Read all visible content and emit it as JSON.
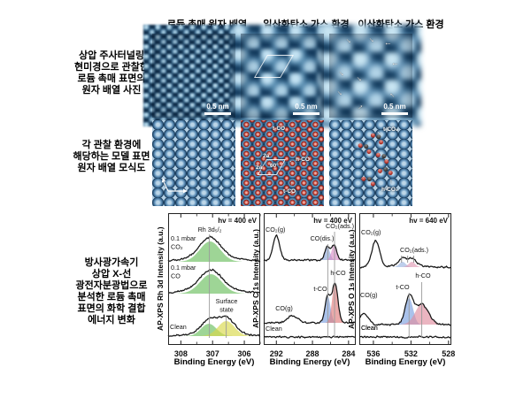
{
  "figure": {
    "headers": {
      "col1": "로듐 촉매 원자 배열",
      "col2": "일산화탄소 가스 환경",
      "col3": "이산화탄소 가스 환경"
    },
    "row_labels": {
      "row1": [
        "상압 주사터널링",
        "현미경으로 관찰한",
        "로듐 촉매 표면의",
        "원자 배열 사진"
      ],
      "row2": [
        "각 관찰 환경에",
        "해당하는 모델 표면",
        "원자 배열 모식도"
      ],
      "row3": [
        "방사광가속기",
        "상압 X-선",
        "광전자분광법으로",
        "분석한 로듐 촉매",
        "표면의 화학 결합",
        "에너지 변화"
      ]
    },
    "scale_bar": "0.5 nm",
    "model_labels": {
      "t_co_top": "t-CO",
      "h_co": "h-CO",
      "two_a_1": "2a",
      "two_a_2": "2a",
      "angle": "60°",
      "t_co_bottom": "t-CO",
      "t_co2": "t-CO₂",
      "h_co2": "h-CO₂"
    }
  },
  "chart_data": [
    {
      "type": "line",
      "title": "hv = 400 eV",
      "ylabel": "AP-XPS Rh 3d Intensity (a.u.)",
      "xlabel": "Binding Energy (eV)",
      "x_range": [
        308.4,
        305.5
      ],
      "x_ticks": [
        308,
        307,
        306
      ],
      "x_minor_ticks": [
        307.5,
        306.5,
        305.5
      ],
      "guide_lines": [
        {
          "x": 307.1,
          "y1": 24,
          "y2": 141
        },
        {
          "x": 306.57,
          "y1": 115,
          "y2": 141
        }
      ],
      "curves": [
        {
          "name": "0.1 mbar CO2",
          "label_lines": [
            "0.1 mbar",
            "CO₂"
          ],
          "label_x": 3,
          "label_y": 31,
          "baseline": 55,
          "peaks": [
            {
              "c": 307.08,
              "w": 0.32,
              "h": 23,
              "fill": "#6abf5e"
            },
            {
              "c": 307.0,
              "w": 0.85,
              "h": 5,
              "fill": null
            }
          ]
        },
        {
          "name": "0.1 mbar CO",
          "label_lines": [
            "0.1 mbar",
            "CO"
          ],
          "label_x": 3,
          "label_y": 64,
          "baseline": 91,
          "peaks": [
            {
              "c": 307.05,
              "w": 0.34,
              "h": 22,
              "fill": "#6abf5e"
            },
            {
              "c": 307.0,
              "w": 0.85,
              "h": 5,
              "fill": null
            }
          ]
        },
        {
          "name": "Clean",
          "label_lines": [
            "Clean"
          ],
          "label_x": 2,
          "label_y": 131,
          "baseline": 139,
          "peaks": [
            {
              "c": 307.12,
              "w": 0.24,
              "h": 14,
              "fill": "#6abf5e"
            },
            {
              "c": 306.57,
              "w": 0.26,
              "h": 17,
              "fill": "#d8d84a"
            },
            {
              "c": 306.85,
              "w": 0.7,
              "h": 4,
              "fill": null
            }
          ]
        }
      ],
      "annotations": [
        {
          "lines": [
            "Rh 3d₅/₂"
          ],
          "x": 47,
          "y": 21,
          "anchor": "middle"
        },
        {
          "lines": [
            "Surface",
            "state"
          ],
          "x": 66,
          "y": 102,
          "anchor": "middle"
        }
      ]
    },
    {
      "type": "line",
      "title": "hv = 400 eV",
      "ylabel": "AP-XPS C 1s Intensity (a.u.)",
      "xlabel": "Binding Energy (eV)",
      "x_range": [
        293.4,
        283.2
      ],
      "x_ticks": [
        292,
        288,
        284
      ],
      "x_minor_ticks": [
        290,
        286
      ],
      "guide_lines": [
        {
          "x": 286.3,
          "y1": 35,
          "y2": 141
        },
        {
          "x": 285.55,
          "y1": 21,
          "y2": 141
        }
      ],
      "curves": [
        {
          "name": "0.1 mbar CO2",
          "label_lines": [],
          "label_x": 0,
          "label_y": 0,
          "baseline": 53,
          "peaks": [
            {
              "c": 292.0,
              "w": 0.35,
              "h": 28,
              "fill": null
            },
            {
              "c": 286.35,
              "w": 0.28,
              "h": 15,
              "fill": "#8ea8d8"
            },
            {
              "c": 285.6,
              "w": 0.28,
              "h": 17,
              "fill": "#d88ec8"
            }
          ]
        },
        {
          "name": "0.1 mbar CO",
          "label_lines": [],
          "label_x": 0,
          "label_y": 0,
          "baseline": 124,
          "peaks": [
            {
              "c": 290.2,
              "w": 0.55,
              "h": 8,
              "fill": null
            },
            {
              "c": 286.3,
              "w": 0.3,
              "h": 30,
              "fill": "#7da2e0"
            },
            {
              "c": 285.5,
              "w": 0.32,
              "h": 44,
              "fill": "#e07d7d"
            }
          ]
        },
        {
          "name": "Clean",
          "label_lines": [
            "Clean"
          ],
          "label_x": 2,
          "label_y": 133,
          "baseline": 140,
          "peaks": []
        }
      ],
      "annotations": [
        {
          "lines": [
            "CO₂(g)"
          ],
          "x": 2,
          "y": 21,
          "anchor": "start"
        },
        {
          "lines": [
            "CO₂(ads.)"
          ],
          "x": 86,
          "y": 17,
          "anchor": "middle"
        },
        {
          "lines": [
            "CO(dis.)"
          ],
          "x": 66,
          "y": 31,
          "anchor": "middle"
        },
        {
          "lines": [
            "h-CO"
          ],
          "x": 84,
          "y": 70,
          "anchor": "middle"
        },
        {
          "lines": [
            "t-CO"
          ],
          "x": 64,
          "y": 88,
          "anchor": "middle"
        },
        {
          "lines": [
            "CO(g)"
          ],
          "x": 23,
          "y": 110,
          "anchor": "middle"
        }
      ]
    },
    {
      "type": "line",
      "title": "hv = 640 eV",
      "ylabel": "AP-XPS O 1s Intensity (a.u.)",
      "xlabel": "Binding Energy (eV)",
      "x_range": [
        537.5,
        527.7
      ],
      "x_ticks": [
        536,
        532,
        528
      ],
      "x_minor_ticks": [
        534,
        530
      ],
      "guide_lines": [
        {
          "x": 532.2,
          "y1": 90,
          "y2": 141
        },
        {
          "x": 530.85,
          "y1": 78,
          "y2": 141
        }
      ],
      "marker_ticks": [
        {
          "x": 533.0,
          "y1": 48,
          "y2": 56
        },
        {
          "x": 532.35,
          "y1": 48,
          "y2": 56
        },
        {
          "x": 531.7,
          "y1": 48,
          "y2": 56
        }
      ],
      "curves": [
        {
          "name": "0.1 mbar CO2",
          "label_lines": [],
          "label_x": 0,
          "label_y": 0,
          "baseline": 61,
          "peaks": [
            {
              "c": 535.75,
              "w": 0.42,
              "h": 30,
              "fill": null
            },
            {
              "c": 532.9,
              "w": 0.35,
              "h": 6,
              "fill": "#9ab4e0"
            },
            {
              "c": 531.9,
              "w": 0.35,
              "h": 6,
              "fill": "#e09ab4"
            },
            {
              "c": 532.4,
              "w": 1.1,
              "h": 5,
              "fill": null
            }
          ]
        },
        {
          "name": "0.1 mbar CO",
          "label_lines": [],
          "label_x": 0,
          "label_y": 0,
          "baseline": 126,
          "peaks": [
            {
              "c": 537.0,
              "w": 0.45,
              "h": 13,
              "fill": null
            },
            {
              "c": 532.2,
              "w": 0.42,
              "h": 30,
              "fill": "#7da2e0"
            },
            {
              "c": 530.85,
              "w": 0.7,
              "h": 23,
              "fill": "#e08da0"
            }
          ]
        },
        {
          "name": "Clean",
          "label_lines": [
            "Clean"
          ],
          "label_x": 2,
          "label_y": 132,
          "baseline": 140,
          "peaks": []
        }
      ],
      "annotations": [
        {
          "lines": [
            "CO₂(g)"
          ],
          "x": 2,
          "y": 24,
          "anchor": "start"
        },
        {
          "lines": [
            "CO₂(ads.)"
          ],
          "x": 62,
          "y": 44,
          "anchor": "middle"
        },
        {
          "lines": [
            "h-CO"
          ],
          "x": 72,
          "y": 73,
          "anchor": "middle"
        },
        {
          "lines": [
            "t-CO"
          ],
          "x": 49,
          "y": 86,
          "anchor": "middle"
        },
        {
          "lines": [
            "CO(g)"
          ],
          "x": 1,
          "y": 95,
          "anchor": "start"
        },
        {
          "lines": [
            "Clean"
          ],
          "x": 2,
          "y": 132,
          "anchor": "start"
        }
      ]
    }
  ]
}
